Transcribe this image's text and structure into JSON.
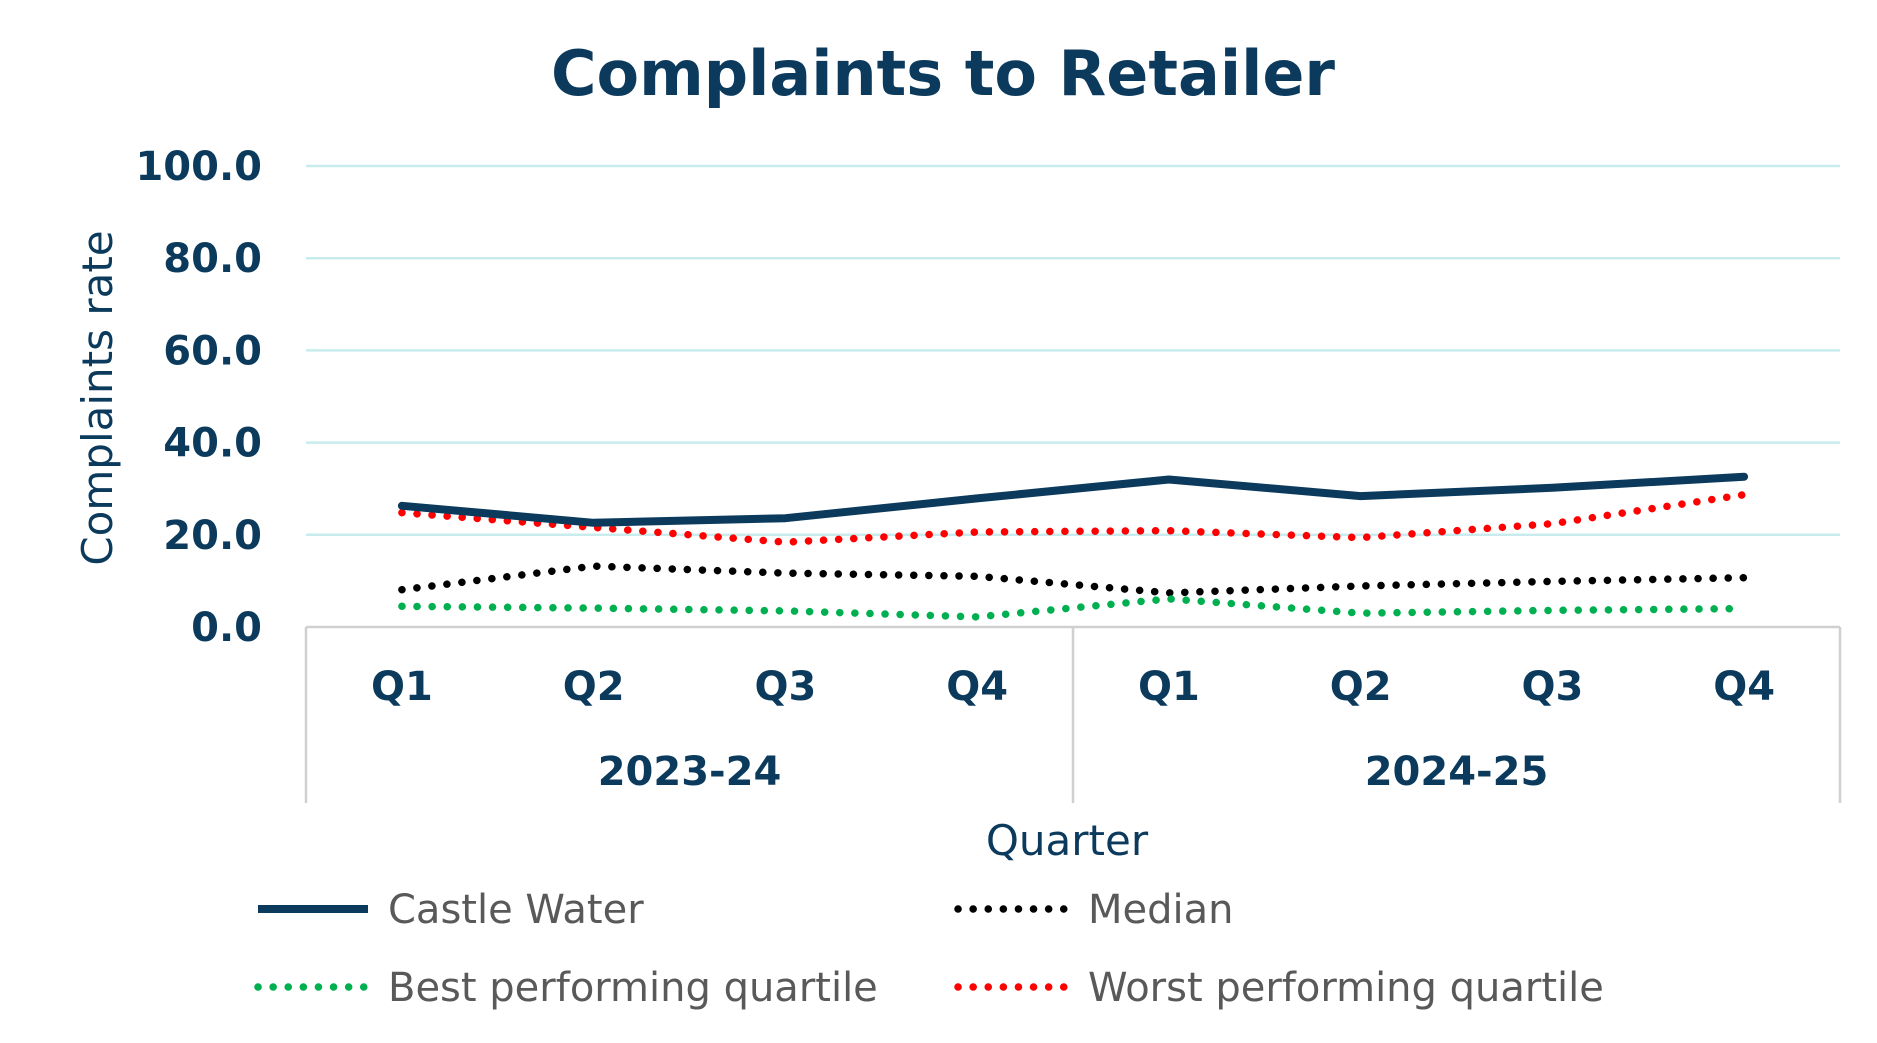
{
  "chart_data": {
    "type": "line",
    "title": "Complaints to Retailer",
    "xlabel": "Quarter",
    "ylabel": "Complaints rate",
    "ylim": [
      0,
      100
    ],
    "yticks": [
      "0.0",
      "20.0",
      "40.0",
      "60.0",
      "80.0",
      "100.0"
    ],
    "ytick_values": [
      0,
      20,
      40,
      60,
      80,
      100
    ],
    "grid": true,
    "legend_position": "bottom",
    "categories": [
      "Q1",
      "Q2",
      "Q3",
      "Q4",
      "Q1",
      "Q2",
      "Q3",
      "Q4"
    ],
    "groups": [
      {
        "label": "2023-24",
        "span": 4
      },
      {
        "label": "2024-25",
        "span": 4
      }
    ],
    "series": [
      {
        "name": "Castle Water",
        "style": "solid",
        "color": "#0b3a5c",
        "values": [
          26.3,
          22.6,
          23.6,
          27.9,
          32.0,
          28.4,
          30.2,
          32.6
        ]
      },
      {
        "name": "Median",
        "style": "dotted",
        "color": "#000000",
        "values": [
          8.1,
          13.2,
          11.7,
          11.0,
          7.4,
          8.9,
          9.9,
          10.7
        ]
      },
      {
        "name": "Best performing quartile",
        "style": "dotted",
        "color": "#00b050",
        "values": [
          4.5,
          4.1,
          3.5,
          2.2,
          6.1,
          3.0,
          3.6,
          4.0
        ]
      },
      {
        "name": "Worst performing quartile",
        "style": "dotted",
        "color": "#ff0000",
        "values": [
          24.8,
          21.6,
          18.4,
          20.6,
          20.9,
          19.4,
          22.4,
          28.7
        ]
      }
    ],
    "colors": {
      "text": "#0b3a5c",
      "gridline": "#c8ecee",
      "axis": "#d0d0d0",
      "legend_text": "#595959"
    }
  }
}
